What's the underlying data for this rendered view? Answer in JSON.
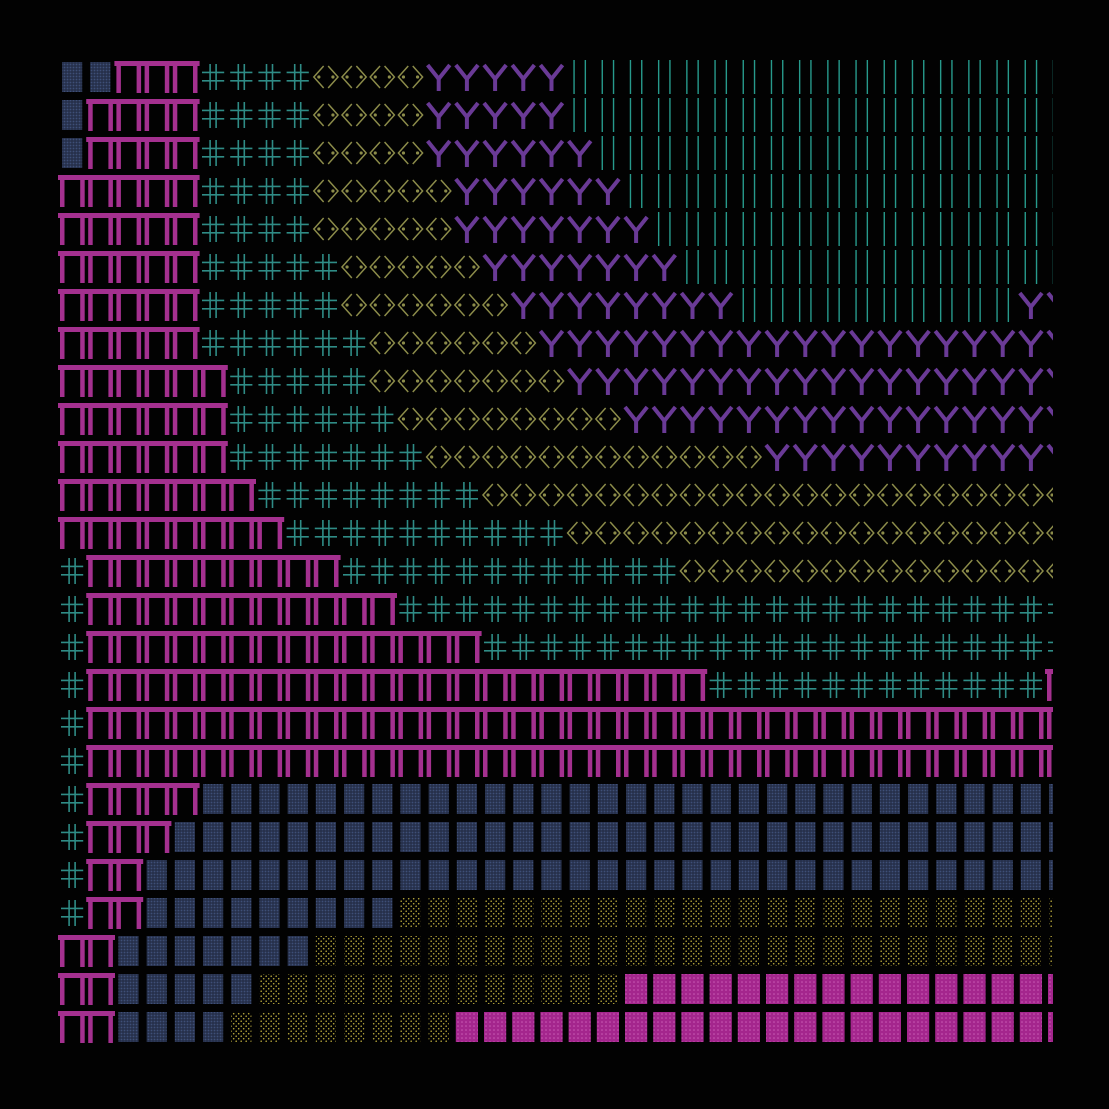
{
  "palette": {
    "background": "#020202",
    "gate": "#a4308f",
    "cross": "#2f8c86",
    "chevron": "#8c8c4a",
    "wishbone": "#6a3a96",
    "bar": "#279a8c",
    "dots_blue": "#3e4f78",
    "dots_yellow": "#b3a43a",
    "block_magenta": "#a4268d"
  },
  "glyph_names": {
    "G": "gate-glyph",
    "X": "cross-glyph",
    "C": "chevron-glyph",
    "Y": "wishbone-glyph",
    "B": "bar-glyph",
    "D": "blue-dots-glyph",
    "E": "yellow-dots-glyph",
    "M": "magenta-block-glyph"
  },
  "rows": [
    [
      [
        "D",
        2
      ],
      [
        "G",
        3
      ],
      [
        "X",
        4
      ],
      [
        "C",
        4
      ],
      [
        "Y",
        5
      ],
      [
        "B",
        18
      ]
    ],
    [
      [
        "D",
        1
      ],
      [
        "G",
        4
      ],
      [
        "X",
        4
      ],
      [
        "C",
        4
      ],
      [
        "Y",
        5
      ],
      [
        "B",
        18
      ]
    ],
    [
      [
        "D",
        1
      ],
      [
        "G",
        4
      ],
      [
        "X",
        4
      ],
      [
        "C",
        4
      ],
      [
        "Y",
        6
      ],
      [
        "B",
        17
      ]
    ],
    [
      [
        "G",
        5
      ],
      [
        "X",
        4
      ],
      [
        "C",
        5
      ],
      [
        "Y",
        6
      ],
      [
        "B",
        16
      ]
    ],
    [
      [
        "G",
        5
      ],
      [
        "X",
        4
      ],
      [
        "C",
        5
      ],
      [
        "Y",
        7
      ],
      [
        "B",
        15
      ]
    ],
    [
      [
        "G",
        5
      ],
      [
        "X",
        5
      ],
      [
        "C",
        5
      ],
      [
        "Y",
        7
      ],
      [
        "B",
        14
      ]
    ],
    [
      [
        "G",
        5
      ],
      [
        "X",
        5
      ],
      [
        "C",
        6
      ],
      [
        "Y",
        8
      ],
      [
        "B",
        10
      ],
      [
        "Y",
        2
      ]
    ],
    [
      [
        "G",
        5
      ],
      [
        "X",
        6
      ],
      [
        "C",
        6
      ],
      [
        "Y",
        19
      ]
    ],
    [
      [
        "G",
        6
      ],
      [
        "X",
        5
      ],
      [
        "C",
        7
      ],
      [
        "Y",
        18
      ]
    ],
    [
      [
        "G",
        6
      ],
      [
        "X",
        6
      ],
      [
        "C",
        8
      ],
      [
        "Y",
        16
      ]
    ],
    [
      [
        "G",
        6
      ],
      [
        "X",
        7
      ],
      [
        "C",
        12
      ],
      [
        "Y",
        11
      ]
    ],
    [
      [
        "G",
        7
      ],
      [
        "X",
        8
      ],
      [
        "C",
        21
      ]
    ],
    [
      [
        "G",
        8
      ],
      [
        "X",
        10
      ],
      [
        "C",
        18
      ]
    ],
    [
      [
        "X",
        1
      ],
      [
        "G",
        9
      ],
      [
        "X",
        12
      ],
      [
        "C",
        14
      ]
    ],
    [
      [
        "X",
        1
      ],
      [
        "G",
        11
      ],
      [
        "X",
        24
      ]
    ],
    [
      [
        "X",
        1
      ],
      [
        "G",
        14
      ],
      [
        "X",
        21
      ]
    ],
    [
      [
        "X",
        1
      ],
      [
        "G",
        22
      ],
      [
        "X",
        12
      ],
      [
        "G",
        1
      ]
    ],
    [
      [
        "X",
        1
      ],
      [
        "G",
        35
      ]
    ],
    [
      [
        "X",
        1
      ],
      [
        "G",
        35
      ]
    ],
    [
      [
        "X",
        1
      ],
      [
        "G",
        4
      ],
      [
        "D",
        31
      ]
    ],
    [
      [
        "X",
        1
      ],
      [
        "G",
        3
      ],
      [
        "D",
        32
      ]
    ],
    [
      [
        "X",
        1
      ],
      [
        "G",
        2
      ],
      [
        "D",
        33
      ]
    ],
    [
      [
        "X",
        1
      ],
      [
        "G",
        2
      ],
      [
        "D",
        9
      ],
      [
        "E",
        24
      ]
    ],
    [
      [
        "G",
        2
      ],
      [
        "D",
        7
      ],
      [
        "E",
        27
      ]
    ],
    [
      [
        "G",
        2
      ],
      [
        "D",
        5
      ],
      [
        "E",
        13
      ],
      [
        "M",
        16
      ]
    ],
    [
      [
        "G",
        2
      ],
      [
        "D",
        4
      ],
      [
        "E",
        8
      ],
      [
        "M",
        22
      ]
    ]
  ]
}
